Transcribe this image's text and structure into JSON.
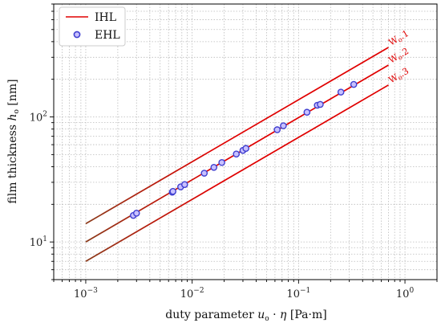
{
  "chart_data": {
    "type": "scatter",
    "xscale": "log",
    "yscale": "log",
    "xlim": [
      0.0005,
      2
    ],
    "ylim": [
      5,
      800
    ],
    "grid": true,
    "legend_position": "top-left",
    "xlabel_parts": [
      "duty parameter ",
      "u",
      "o",
      " · ",
      "η",
      " [Pa·m]"
    ],
    "ylabel_parts": [
      "film thickness ",
      "h",
      "o",
      " [nm]"
    ],
    "x_ticks": [
      {
        "value": 0.001,
        "base": "10",
        "exp": "−3"
      },
      {
        "value": 0.01,
        "base": "10",
        "exp": "−2"
      },
      {
        "value": 0.1,
        "base": "10",
        "exp": "−1"
      },
      {
        "value": 1,
        "base": "10",
        "exp": "0"
      }
    ],
    "y_ticks": [
      {
        "value": 10,
        "base": "10",
        "exp": "1"
      },
      {
        "value": 100,
        "base": "10",
        "exp": "2"
      }
    ],
    "colors": {
      "ihl_line": "#e00000",
      "ihl_line_lower": "#8b3a1a",
      "ehl_marker_edge": "#4040d0",
      "ehl_marker_fill": "#c8c0ff",
      "grid": "#bbbbbb",
      "label_text": "#e00000"
    },
    "legend": [
      {
        "label": "IHL",
        "kind": "line"
      },
      {
        "label": "EHL",
        "kind": "marker"
      }
    ],
    "series": [
      {
        "name": "IHL",
        "kind": "line",
        "lines": [
          {
            "label_base": "W",
            "label_sub": "o",
            "label_suffix": ".1",
            "x": [
              0.001,
              0.7
            ],
            "y": [
              14,
              360
            ]
          },
          {
            "label_base": "W",
            "label_sub": "o",
            "label_suffix": ".2",
            "x": [
              0.001,
              0.7
            ],
            "y": [
              10,
              260
            ]
          },
          {
            "label_base": "W",
            "label_sub": "o",
            "label_suffix": ".3",
            "x": [
              0.001,
              0.7
            ],
            "y": [
              7,
              180
            ]
          }
        ]
      },
      {
        "name": "EHL",
        "kind": "scatter",
        "points": [
          {
            "x": 0.0028,
            "y": 16.3
          },
          {
            "x": 0.003,
            "y": 17.0
          },
          {
            "x": 0.0065,
            "y": 25.0
          },
          {
            "x": 0.0066,
            "y": 25.4
          },
          {
            "x": 0.0078,
            "y": 27.6
          },
          {
            "x": 0.0085,
            "y": 28.8
          },
          {
            "x": 0.013,
            "y": 35.5
          },
          {
            "x": 0.016,
            "y": 39.5
          },
          {
            "x": 0.019,
            "y": 43.2
          },
          {
            "x": 0.026,
            "y": 50.5
          },
          {
            "x": 0.03,
            "y": 54.0
          },
          {
            "x": 0.032,
            "y": 56.0
          },
          {
            "x": 0.063,
            "y": 79.0
          },
          {
            "x": 0.072,
            "y": 85.0
          },
          {
            "x": 0.12,
            "y": 109.0
          },
          {
            "x": 0.15,
            "y": 124.0
          },
          {
            "x": 0.16,
            "y": 126.0
          },
          {
            "x": 0.25,
            "y": 158.0
          },
          {
            "x": 0.33,
            "y": 182.0
          }
        ]
      }
    ]
  }
}
